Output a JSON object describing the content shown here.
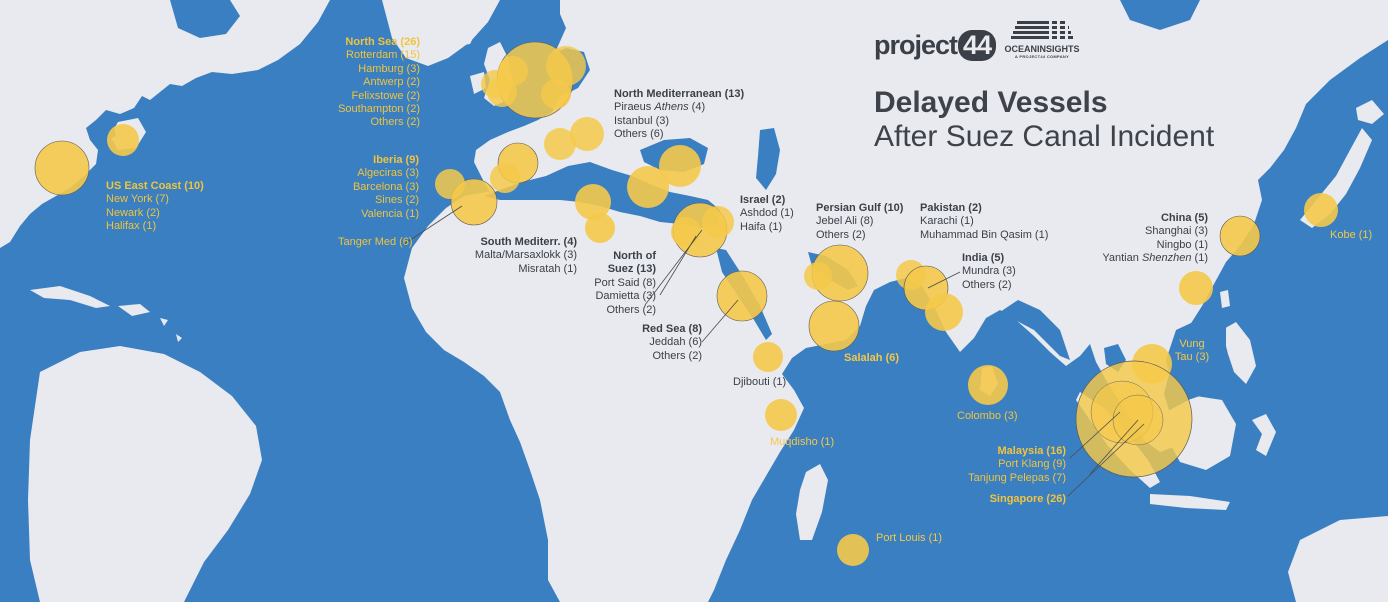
{
  "title": {
    "line1": "Delayed Vessels",
    "line2": "After Suez Canal Incident"
  },
  "logos": {
    "project44": {
      "text": "project",
      "badge": "44"
    },
    "ocean_insights": {
      "name": "OCEANINSIGHTS",
      "tagline": "A PROJECT44 COMPANY"
    }
  },
  "colors": {
    "ocean": "#3a7fc2",
    "land": "#e9eaef",
    "bubble": "#f5c94a",
    "dark_text": "#3a3f48",
    "yellow_text": "#f0c43c"
  },
  "regions": {
    "north_sea": {
      "heading": "North Sea (26)",
      "ports": [
        "Rotterdam (15)",
        "Hamburg (3)",
        "Antwerp (2)",
        "Felixstowe (2)",
        "Southampton (2)",
        "Others (2)"
      ]
    },
    "north_med": {
      "heading": "North Mediterranean (13)",
      "ports": [
        "Piraeus",
        "Istanbul (3)",
        "Others (6)"
      ],
      "piraeus_alias": "Athens",
      "piraeus_count": "(4)"
    },
    "us_east": {
      "heading": "US East Coast (10)",
      "ports": [
        "New York (7)",
        "Newark (2)",
        "Halifax (1)"
      ]
    },
    "iberia": {
      "heading": "Iberia (9)",
      "ports": [
        "Algeciras (3)",
        "Barcelona (3)",
        "Sines (2)",
        "Valencia (1)"
      ]
    },
    "tanger": {
      "heading": "Tanger Med (6)"
    },
    "south_med": {
      "heading": "South Mediterr. (4)",
      "ports": [
        "Malta/Marsaxlokk (3)",
        "Misratah (1)"
      ]
    },
    "israel": {
      "heading": "Israel (2)",
      "ports": [
        "Ashdod (1)",
        "Haifa (1)"
      ]
    },
    "north_suez": {
      "heading_line1": "North of",
      "heading_line2": "Suez (13)",
      "ports": [
        "Port Said (8)",
        "Damietta (3)",
        "Others (2)"
      ]
    },
    "red_sea": {
      "heading": "Red Sea (8)",
      "ports": [
        "Jeddah (6)",
        "Others (2)"
      ]
    },
    "djibouti": {
      "heading": "Djibouti (1)"
    },
    "muqdisho": {
      "heading": "Muqdisho (1)"
    },
    "port_louis": {
      "heading": "Port Louis (1)"
    },
    "persian_gulf": {
      "heading": "Persian Gulf (10)",
      "ports": [
        "Jebel Ali (8)",
        "Others (2)"
      ]
    },
    "salalah": {
      "heading": "Salalah (6)"
    },
    "pakistan": {
      "heading": "Pakistan (2)",
      "ports": [
        "Karachi (1)",
        "Muhammad Bin Qasim (1)"
      ]
    },
    "india": {
      "heading": "India (5)",
      "ports": [
        "Mundra (3)",
        "Others (2)"
      ]
    },
    "colombo": {
      "heading": "Colombo (3)"
    },
    "china": {
      "heading": "China (5)",
      "ports": [
        "Shanghai (3)",
        "Ningbo (1)"
      ],
      "yantian": "Yantian",
      "yantian_alias": "Shenzhen",
      "yantian_count": "(1)"
    },
    "kobe": {
      "heading": "Kobe (1)"
    },
    "vung_tau": {
      "line1": "Vung",
      "line2": "Tau (3)"
    },
    "malaysia": {
      "heading": "Malaysia (16)",
      "ports": [
        "Port Klang (9)",
        "Tanjung Pelepas (7)"
      ]
    },
    "singapore": {
      "heading": "Singapore (26)"
    }
  }
}
